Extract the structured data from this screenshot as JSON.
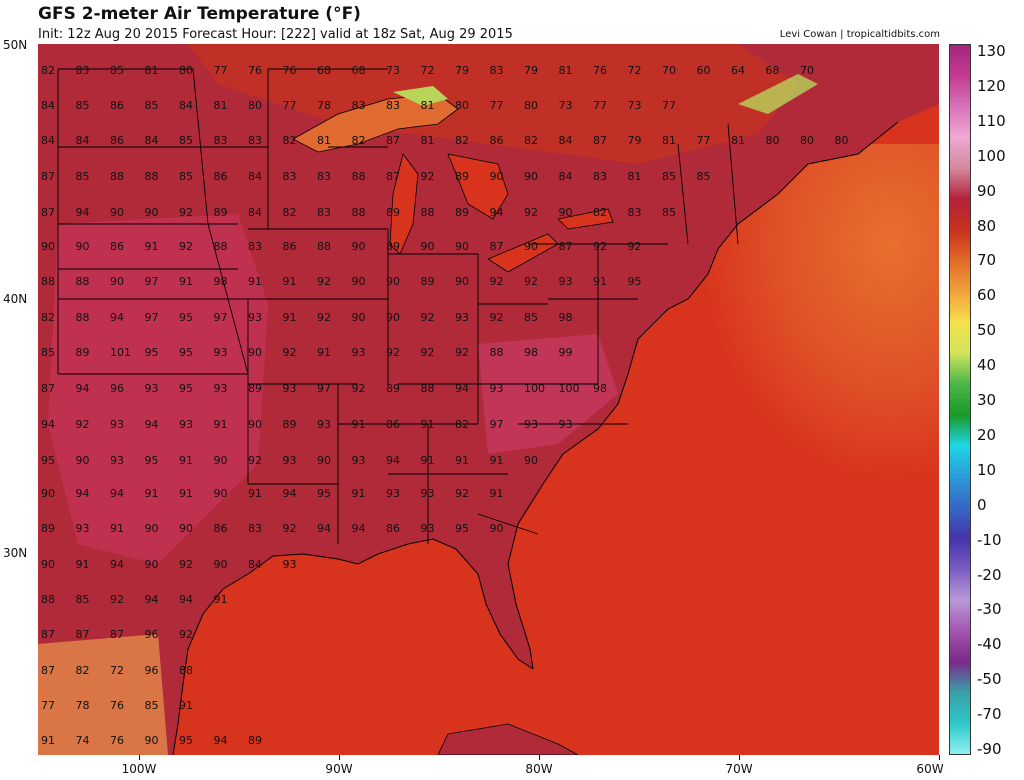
{
  "header": {
    "title": "GFS 2-meter Air Temperature (°F)",
    "info": "Init: 12z Aug 20 2015   Forecast Hour: [222]   valid at 18z Sat, Aug 29 2015",
    "credit": "Levi Cowan | tropicaltidbits.com"
  },
  "map": {
    "lat_labels": [
      "50N",
      "40N",
      "30N"
    ],
    "lon_labels": [
      "100W",
      "90W",
      "80W",
      "70W",
      "60W"
    ],
    "temperature_labels": [
      [
        "82",
        "83",
        "85",
        "81",
        "80",
        "77",
        "76",
        "76",
        "68",
        "68",
        "73",
        "72",
        "79",
        "83",
        "79",
        "81",
        "76",
        "72",
        "70",
        "60",
        "64",
        "68",
        "70"
      ],
      [
        "84",
        "85",
        "86",
        "85",
        "84",
        "81",
        "80",
        "77",
        "78",
        "83",
        "83",
        "81",
        "80",
        "77",
        "80",
        "73",
        "77",
        "73",
        "77"
      ],
      [
        "84",
        "84",
        "86",
        "84",
        "85",
        "83",
        "83",
        "82",
        "81",
        "82",
        "87",
        "81",
        "82",
        "86",
        "82",
        "84",
        "87",
        "79",
        "81",
        "77",
        "81",
        "80",
        "80",
        "80"
      ],
      [
        "87",
        "85",
        "88",
        "88",
        "85",
        "86",
        "84",
        "83",
        "83",
        "88",
        "87",
        "92",
        "89",
        "90",
        "90",
        "84",
        "83",
        "81",
        "85",
        "85"
      ],
      [
        "87",
        "94",
        "90",
        "90",
        "92",
        "89",
        "84",
        "82",
        "83",
        "88",
        "89",
        "88",
        "89",
        "94",
        "92",
        "90",
        "82",
        "83",
        "85"
      ],
      [
        "90",
        "90",
        "86",
        "91",
        "92",
        "88",
        "83",
        "86",
        "88",
        "90",
        "89",
        "90",
        "90",
        "87",
        "90",
        "87",
        "92",
        "92"
      ],
      [
        "88",
        "88",
        "90",
        "97",
        "91",
        "98",
        "91",
        "91",
        "92",
        "90",
        "90",
        "89",
        "90",
        "92",
        "92",
        "93",
        "91",
        "95"
      ],
      [
        "82",
        "88",
        "94",
        "97",
        "95",
        "97",
        "93",
        "91",
        "92",
        "90",
        "90",
        "92",
        "93",
        "92",
        "85",
        "98"
      ],
      [
        "85",
        "89",
        "101",
        "95",
        "95",
        "93",
        "90",
        "92",
        "91",
        "93",
        "92",
        "92",
        "92",
        "88",
        "98",
        "99"
      ],
      [
        "87",
        "94",
        "96",
        "93",
        "95",
        "93",
        "89",
        "93",
        "97",
        "92",
        "89",
        "88",
        "94",
        "93",
        "100",
        "100",
        "98"
      ],
      [
        "94",
        "92",
        "93",
        "94",
        "93",
        "91",
        "90",
        "89",
        "93",
        "91",
        "86",
        "91",
        "82",
        "97",
        "93",
        "93"
      ],
      [
        "95",
        "90",
        "93",
        "95",
        "91",
        "90",
        "92",
        "93",
        "90",
        "93",
        "94",
        "91",
        "91",
        "91",
        "90"
      ],
      [
        "90",
        "94",
        "94",
        "91",
        "91",
        "90",
        "91",
        "94",
        "95",
        "91",
        "93",
        "93",
        "92",
        "91"
      ],
      [
        "89",
        "93",
        "91",
        "90",
        "90",
        "86",
        "83",
        "92",
        "94",
        "94",
        "86",
        "93",
        "95",
        "90"
      ],
      [
        "90",
        "91",
        "94",
        "90",
        "92",
        "90",
        "84",
        "93"
      ],
      [
        "88",
        "85",
        "92",
        "94",
        "94",
        "91"
      ],
      [
        "87",
        "87",
        "87",
        "96",
        "92"
      ],
      [
        "87",
        "82",
        "72",
        "96",
        "88"
      ],
      [
        "77",
        "78",
        "76",
        "85",
        "91"
      ],
      [
        "91",
        "74",
        "76",
        "90",
        "95",
        "94",
        "89"
      ]
    ],
    "colors": {
      "land_hot": "#b02a3a",
      "land_hotter": "#c8355a",
      "land_warm": "#c8331e",
      "ocean": "#d8331c",
      "ocean_cool": "#e0552a",
      "atlantic_cool": "#ea7a30",
      "lake_cool": "#b8d55a",
      "borders": "#000000"
    }
  },
  "colorbar": {
    "labels": [
      "130",
      "120",
      "110",
      "100",
      "90",
      "80",
      "70",
      "60",
      "50",
      "40",
      "30",
      "20",
      "10",
      "0",
      "-10",
      "-20",
      "-30",
      "-40",
      "-50",
      "-70",
      "-90"
    ],
    "stops": [
      "#a8237e",
      "#c23c92",
      "#d872b8",
      "#f0a8d4",
      "#d4889e",
      "#b3223c",
      "#c9311e",
      "#e26a28",
      "#f2a23a",
      "#f6e04a",
      "#d0e45e",
      "#4db648",
      "#189a26",
      "#1fd6e6",
      "#2b9cd8",
      "#3668c6",
      "#4434a8",
      "#7a5cc2",
      "#b89ad8",
      "#a456b0",
      "#7a2a8a",
      "#3aa0a8",
      "#2fc8c8",
      "#8ef0f0"
    ]
  }
}
